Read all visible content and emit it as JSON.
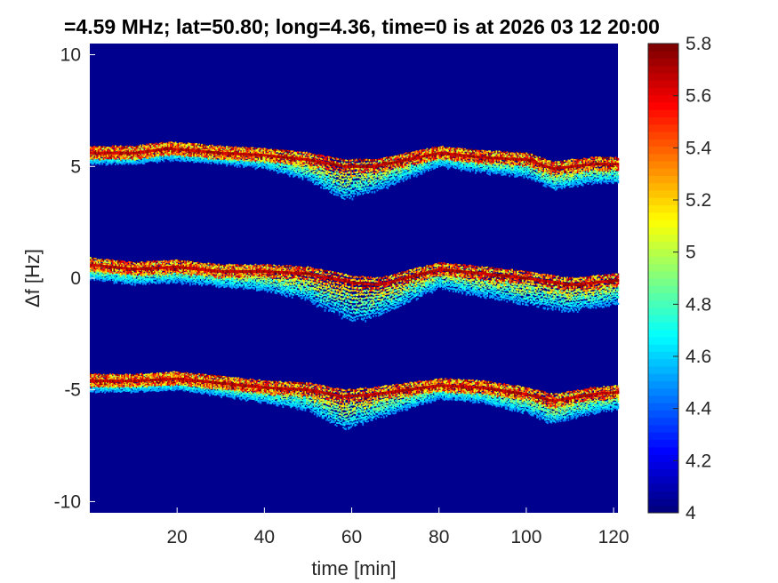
{
  "chart_data": {
    "type": "heatmap",
    "title": "=4.59 MHz;  lat=50.80; long=4.36, time=0 is at 2026 03 12 20:00",
    "xlabel": "time [min]",
    "ylabel": "Δf [Hz]",
    "xlim": [
      0,
      121
    ],
    "ylim": [
      -10.5,
      10.5
    ],
    "xticks": [
      20,
      40,
      60,
      80,
      100,
      120
    ],
    "yticks": [
      -10,
      -5,
      0,
      5,
      10
    ],
    "colorbar": {
      "range": [
        4,
        5.8
      ],
      "ticks": [
        4,
        4.2,
        4.4,
        4.6,
        4.8,
        5,
        5.2,
        5.4,
        5.6,
        5.8
      ],
      "colormap": "jet"
    },
    "background_color": "#00008F",
    "grid": false,
    "traces": [
      {
        "time": [
          0,
          10,
          18,
          30,
          40,
          50,
          58,
          65,
          80,
          90,
          100,
          106,
          115,
          121
        ],
        "df": [
          5.6,
          5.6,
          5.8,
          5.6,
          5.5,
          5.3,
          5.0,
          5.0,
          5.6,
          5.4,
          5.3,
          4.9,
          5.1,
          5.1
        ],
        "lower_spread": [
          0.2,
          0.2,
          0.2,
          0.2,
          0.3,
          0.7,
          1.3,
          0.9,
          0.3,
          0.4,
          0.5,
          0.7,
          0.6,
          0.6
        ]
      },
      {
        "time": [
          0,
          10,
          20,
          30,
          40,
          50,
          60,
          66,
          80,
          90,
          100,
          110,
          121
        ],
        "df": [
          0.6,
          0.4,
          0.5,
          0.3,
          0.3,
          0.2,
          -0.2,
          -0.3,
          0.4,
          0.2,
          0.0,
          -0.3,
          -0.1
        ],
        "lower_spread": [
          0.4,
          0.4,
          0.4,
          0.4,
          0.6,
          1.0,
          1.6,
          1.2,
          0.6,
          0.8,
          1.0,
          1.0,
          0.8
        ]
      },
      {
        "time": [
          0,
          10,
          20,
          30,
          40,
          50,
          58,
          65,
          80,
          90,
          100,
          106,
          115,
          121
        ],
        "df": [
          -4.6,
          -4.6,
          -4.5,
          -4.7,
          -4.9,
          -5.0,
          -5.3,
          -5.2,
          -4.8,
          -4.9,
          -5.2,
          -5.5,
          -5.2,
          -5.1
        ],
        "lower_spread": [
          0.2,
          0.2,
          0.2,
          0.3,
          0.4,
          0.7,
          1.3,
          0.9,
          0.3,
          0.4,
          0.6,
          0.8,
          0.6,
          0.5
        ]
      }
    ]
  }
}
